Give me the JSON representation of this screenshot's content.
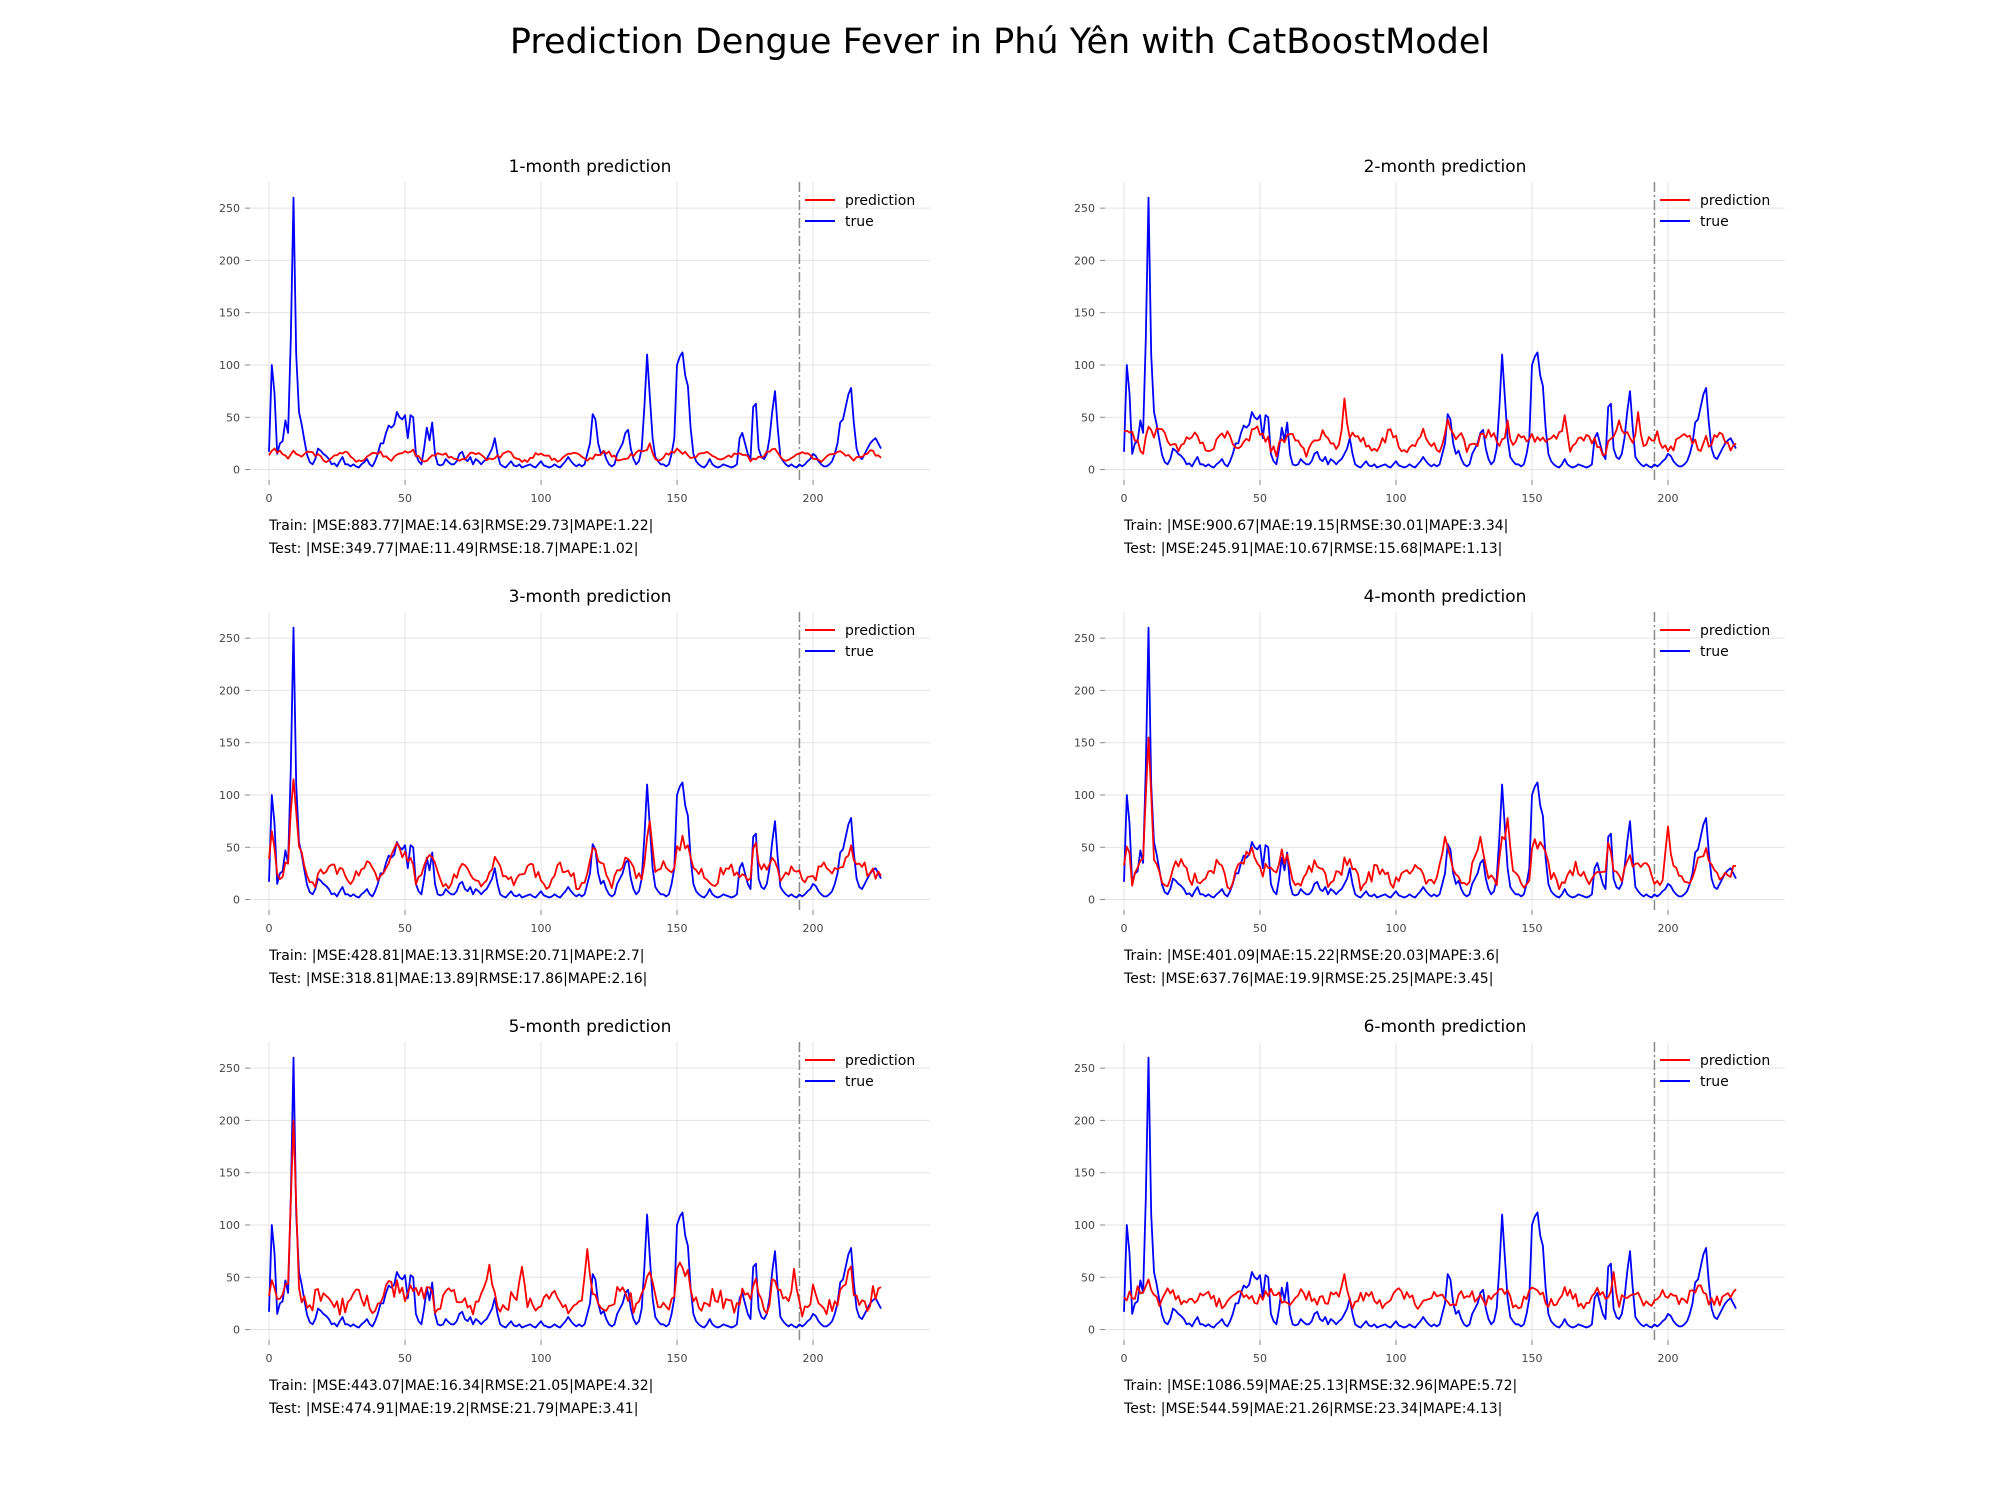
{
  "title": "Prediction Dengue Fever in Phú Yên with CatBoostModel",
  "colors": {
    "prediction": "#ff0000",
    "true": "#0000ff",
    "split_line": "#8a8a8a",
    "grid": "#e3e3e3"
  },
  "shared": {
    "x_ticks": [
      0,
      50,
      100,
      150,
      200
    ],
    "y_ticks": [
      0,
      50,
      100,
      150,
      200,
      250
    ],
    "xlim": [
      -7,
      243
    ],
    "ylim": [
      -10,
      275
    ],
    "split_x": 195,
    "legend": [
      "prediction",
      "true"
    ],
    "true_series": [
      17,
      100,
      73,
      15,
      25,
      27,
      47,
      35,
      125,
      260,
      110,
      55,
      43,
      28,
      14,
      7,
      5,
      10,
      20,
      18,
      15,
      13,
      10,
      5,
      6,
      3,
      8,
      12,
      5,
      5,
      3,
      5,
      3,
      2,
      5,
      7,
      10,
      5,
      3,
      8,
      15,
      25,
      25,
      35,
      42,
      40,
      43,
      55,
      50,
      48,
      52,
      30,
      52,
      50,
      15,
      8,
      5,
      20,
      40,
      28,
      45,
      15,
      5,
      4,
      5,
      10,
      7,
      5,
      5,
      8,
      15,
      17,
      10,
      8,
      12,
      5,
      10,
      8,
      5,
      8,
      10,
      15,
      20,
      30,
      15,
      5,
      3,
      2,
      5,
      8,
      4,
      3,
      5,
      2,
      3,
      4,
      5,
      3,
      2,
      5,
      8,
      4,
      3,
      2,
      3,
      5,
      3,
      2,
      5,
      8,
      12,
      8,
      5,
      3,
      5,
      3,
      5,
      15,
      25,
      53,
      48,
      25,
      15,
      18,
      10,
      5,
      3,
      5,
      15,
      20,
      25,
      35,
      38,
      20,
      10,
      5,
      8,
      20,
      60,
      110,
      70,
      30,
      12,
      8,
      5,
      5,
      3,
      5,
      15,
      30,
      100,
      108,
      112,
      90,
      80,
      40,
      15,
      8,
      5,
      3,
      2,
      5,
      10,
      5,
      3,
      2,
      3,
      5,
      4,
      3,
      2,
      3,
      5,
      30,
      35,
      25,
      15,
      10,
      60,
      63,
      20,
      12,
      10,
      15,
      30,
      55,
      75,
      40,
      12,
      8,
      5,
      3,
      5,
      3,
      2,
      5,
      3,
      5,
      8,
      10,
      15,
      13,
      8,
      5,
      3,
      3,
      5,
      8,
      15,
      25,
      45,
      48,
      60,
      72,
      78,
      45,
      20,
      12,
      10,
      15,
      20,
      25,
      28,
      30,
      25,
      20
    ]
  },
  "panels": [
    {
      "title": "1-month prediction",
      "metrics": {
        "train": "Train: |MSE:883.77|MAE:14.63|RMSE:29.73|MAPE:1.22|",
        "test": "Test: |MSE:349.77|MAE:11.49|RMSE:18.7|MAPE:1.02|"
      },
      "pred_base": 12,
      "pred_amp": 4,
      "pred_noise": 2,
      "pred_follow": 0.05,
      "pred_spikes": [
        [
          9,
          18
        ],
        [
          140,
          25
        ],
        [
          153,
          17
        ]
      ]
    },
    {
      "title": "2-month prediction",
      "metrics": {
        "train": "Train: |MSE:900.67|MAE:19.15|RMSE:30.01|MAPE:3.34|",
        "test": "Test: |MSE:245.91|MAE:10.67|RMSE:15.68|MAPE:1.13|"
      },
      "pred_base": 25,
      "pred_amp": 8,
      "pred_noise": 6,
      "pred_follow": 0.1,
      "pred_spikes": [
        [
          81,
          68
        ],
        [
          119,
          48
        ],
        [
          141,
          47
        ],
        [
          162,
          52
        ],
        [
          182,
          47
        ],
        [
          189,
          55
        ]
      ]
    },
    {
      "title": "3-month prediction",
      "metrics": {
        "train": "Train: |MSE:428.81|MAE:13.31|RMSE:20.71|MAPE:2.7|",
        "test": "Test: |MSE:318.81|MAE:13.89|RMSE:17.86|MAPE:2.16|"
      },
      "pred_base": 22,
      "pred_amp": 8,
      "pred_noise": 6,
      "pred_follow": 0.35,
      "pred_spikes": [
        [
          9,
          115
        ],
        [
          140,
          75
        ],
        [
          154,
          52
        ]
      ]
    },
    {
      "title": "4-month prediction",
      "metrics": {
        "train": "Train: |MSE:401.09|MAE:15.22|RMSE:20.03|MAPE:3.6|",
        "test": "Test: |MSE:637.76|MAE:19.9|RMSE:25.25|MAPE:3.45|"
      },
      "pred_base": 22,
      "pred_amp": 8,
      "pred_noise": 7,
      "pred_follow": 0.3,
      "pred_spikes": [
        [
          9,
          155
        ],
        [
          118,
          60
        ],
        [
          131,
          60
        ],
        [
          141,
          78
        ],
        [
          153,
          55
        ],
        [
          200,
          70
        ]
      ]
    },
    {
      "title": "5-month prediction",
      "metrics": {
        "train": "Train: |MSE:443.07|MAE:16.34|RMSE:21.05|MAPE:4.32|",
        "test": "Test: |MSE:474.91|MAE:19.2|RMSE:21.79|MAPE:3.41|"
      },
      "pred_base": 25,
      "pred_amp": 6,
      "pred_noise": 9,
      "pred_follow": 0.3,
      "pred_spikes": [
        [
          9,
          200
        ],
        [
          81,
          62
        ],
        [
          93,
          60
        ],
        [
          117,
          77
        ],
        [
          140,
          55
        ],
        [
          193,
          58
        ]
      ]
    },
    {
      "title": "6-month prediction",
      "metrics": {
        "train": "Train: |MSE:1086.59|MAE:25.13|RMSE:32.96|MAPE:5.72|",
        "test": "Test: |MSE:544.59|MAE:21.26|RMSE:23.34|MAPE:4.13|"
      },
      "pred_base": 30,
      "pred_amp": 5,
      "pred_noise": 6,
      "pred_follow": 0.05,
      "pred_spikes": [
        [
          9,
          48
        ],
        [
          81,
          53
        ],
        [
          180,
          55
        ]
      ]
    }
  ]
}
